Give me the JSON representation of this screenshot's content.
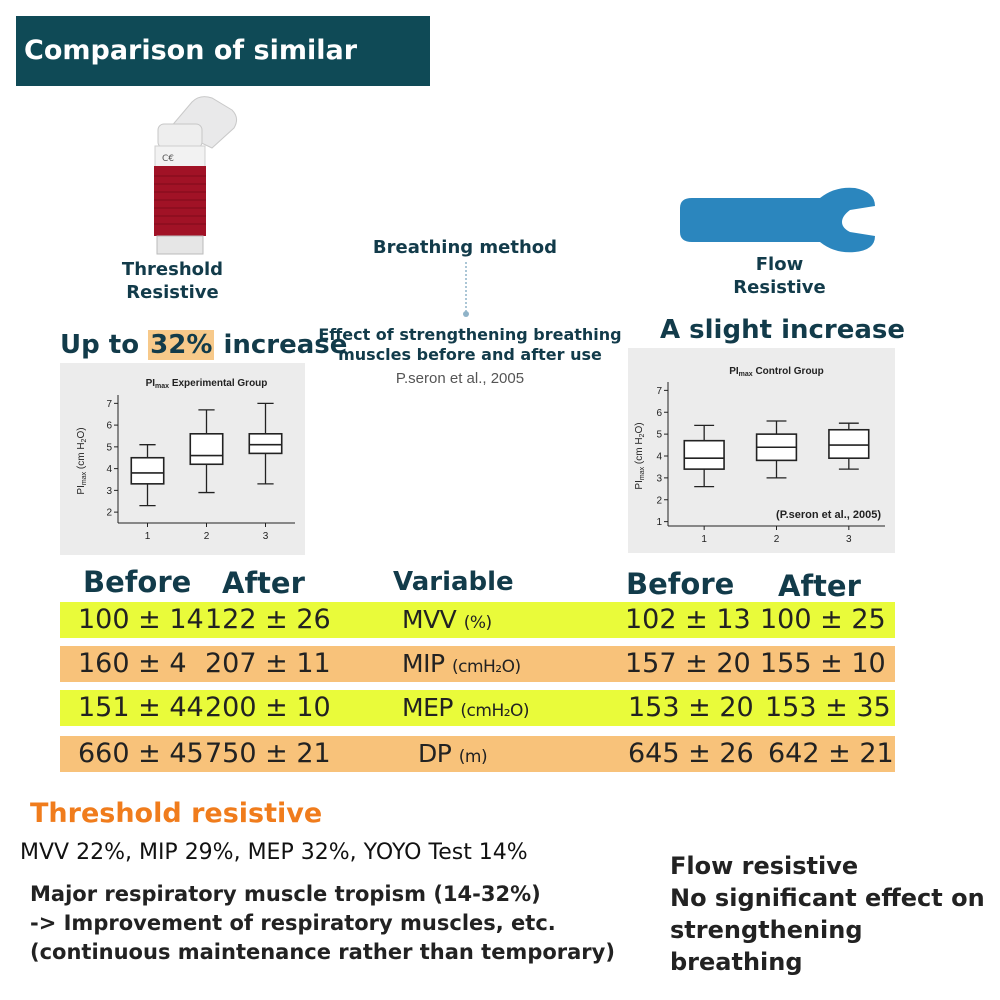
{
  "header": {
    "title": "Comparison of similar products"
  },
  "left_product": {
    "label_line1": "Threshold",
    "label_line2": "Resistive",
    "headline_prefix": "Up to",
    "headline_highlight": "32%",
    "headline_suffix": "increase"
  },
  "right_product": {
    "label_line1": "Flow",
    "label_line2": "Resistive",
    "headline": "A slight increase"
  },
  "center_info": {
    "method": "Breathing method",
    "effect_line1": "Effect of strengthening breathing",
    "effect_line2": "muscles before and after use",
    "citation": "P.seron et al., 2005"
  },
  "chart_data": [
    {
      "type": "box",
      "title": "PI",
      "title_sub": "max",
      "title_rest": "Experimental Group",
      "ylabel": "PI",
      "ylabel_sub": "max",
      "ylabel_rest": "(cm H",
      "ylabel_sub2": "2",
      "ylabel_end": "O)",
      "categories": [
        "1",
        "2",
        "3"
      ],
      "y_ticks": [
        "2",
        "3",
        "4",
        "5",
        "6",
        "7"
      ],
      "ylim": [
        1.5,
        7.2
      ],
      "boxes": [
        {
          "min": 2.3,
          "q1": 3.3,
          "median": 3.8,
          "q3": 4.5,
          "max": 5.1
        },
        {
          "min": 2.9,
          "q1": 4.2,
          "median": 4.6,
          "q3": 5.6,
          "max": 6.7
        },
        {
          "min": 3.3,
          "q1": 4.7,
          "median": 5.1,
          "q3": 5.6,
          "max": 7.0
        }
      ]
    },
    {
      "type": "box",
      "title": "PI",
      "title_sub": "max",
      "title_rest": "Control Group",
      "ylabel": "PI",
      "ylabel_sub": "max",
      "ylabel_rest": "(cm H",
      "ylabel_sub2": "2",
      "ylabel_end": "O)",
      "annotation": "(P.seron et al., 2005)",
      "categories": [
        "1",
        "2",
        "3"
      ],
      "y_ticks": [
        "1",
        "2",
        "3",
        "4",
        "5",
        "6",
        "7"
      ],
      "ylim": [
        0.8,
        7.2
      ],
      "boxes": [
        {
          "min": 2.6,
          "q1": 3.4,
          "median": 3.9,
          "q3": 4.7,
          "max": 5.4
        },
        {
          "min": 3.0,
          "q1": 3.8,
          "median": 4.4,
          "q3": 5.0,
          "max": 5.6
        },
        {
          "min": 3.4,
          "q1": 3.9,
          "median": 4.5,
          "q3": 5.2,
          "max": 5.5
        }
      ]
    }
  ],
  "table": {
    "headers": {
      "before_left": "Before",
      "after_left": "After",
      "variable": "Variable",
      "before_right": "Before",
      "after_right": "After"
    },
    "rows": [
      {
        "before_l": "100 ± 14",
        "after_l": "122 ± 26",
        "var": "MVV",
        "unit": "(%)",
        "before_r": "102 ± 13",
        "after_r": "100 ± 25",
        "color": "#e9fb3a"
      },
      {
        "before_l": "160 ± 4",
        "after_l": "207 ± 11",
        "var": "MIP",
        "unit": "(cmH₂O)",
        "before_r": "157 ± 20",
        "after_r": "155 ± 10",
        "color": "#f8c27a"
      },
      {
        "before_l": "151 ± 44",
        "after_l": "200 ± 10",
        "var": "MEP",
        "unit": "(cmH₂O)",
        "before_r": "153 ± 20",
        "after_r": "153 ± 35",
        "color": "#e9fb3a"
      },
      {
        "before_l": "660 ± 45",
        "after_l": "750 ± 21",
        "var": "DP",
        "unit": "(m)",
        "before_r": "645 ± 26",
        "after_r": "642 ± 21",
        "color": "#f8c27a"
      }
    ]
  },
  "summary": {
    "threshold_title": "Threshold resistive",
    "threshold_stats": "MVV 22%, MIP 29%, MEP 32%, YOYO Test 14%",
    "line1": "Major respiratory muscle tropism (14-32%)",
    "line2": "->  Improvement of respiratory muscles, etc.",
    "line3": "(continuous maintenance rather than temporary)",
    "flow_line1": "Flow resistive",
    "flow_line2": "No significant effect on",
    "flow_line3": "strengthening breathing"
  },
  "colors": {
    "title_bg": "#0f4a56",
    "dark_text": "#123b4a",
    "orange_title": "#f07c1c",
    "flow_device": "#2b86be",
    "threshold_device": "#a11226"
  }
}
